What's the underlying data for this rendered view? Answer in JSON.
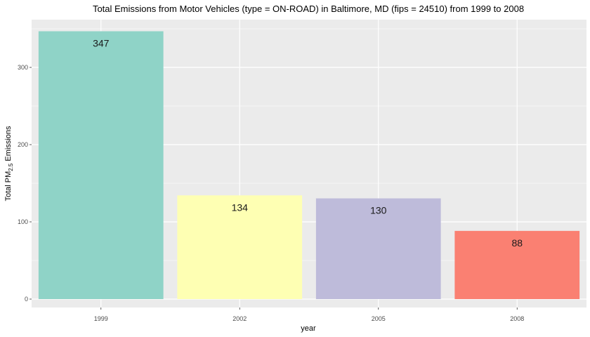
{
  "chart_data": {
    "type": "bar",
    "title": "Total Emissions from Motor Vehicles (type = ON-ROAD) in Baltimore, MD (fips = 24510) from 1999 to 2008",
    "xlabel": "year",
    "ylabel": {
      "prefix": "Total PM",
      "subscript": "2.5",
      "suffix": " Emissions"
    },
    "categories": [
      "1999",
      "2002",
      "2005",
      "2008"
    ],
    "values": [
      346.8,
      134.3,
      130.4,
      88.3
    ],
    "data_labels": [
      "347",
      "134",
      "130",
      "88"
    ],
    "colors": [
      "#8fd3c7",
      "#feffb3",
      "#bebbda",
      "#fa8072"
    ],
    "ylim": [
      0,
      362
    ],
    "yticks": [
      0,
      100,
      200,
      300
    ],
    "yminor": [
      50,
      150,
      250,
      350
    ],
    "grid": true,
    "legend": "none",
    "background": "#ebebeb",
    "gridline_color": "#ffffff"
  }
}
